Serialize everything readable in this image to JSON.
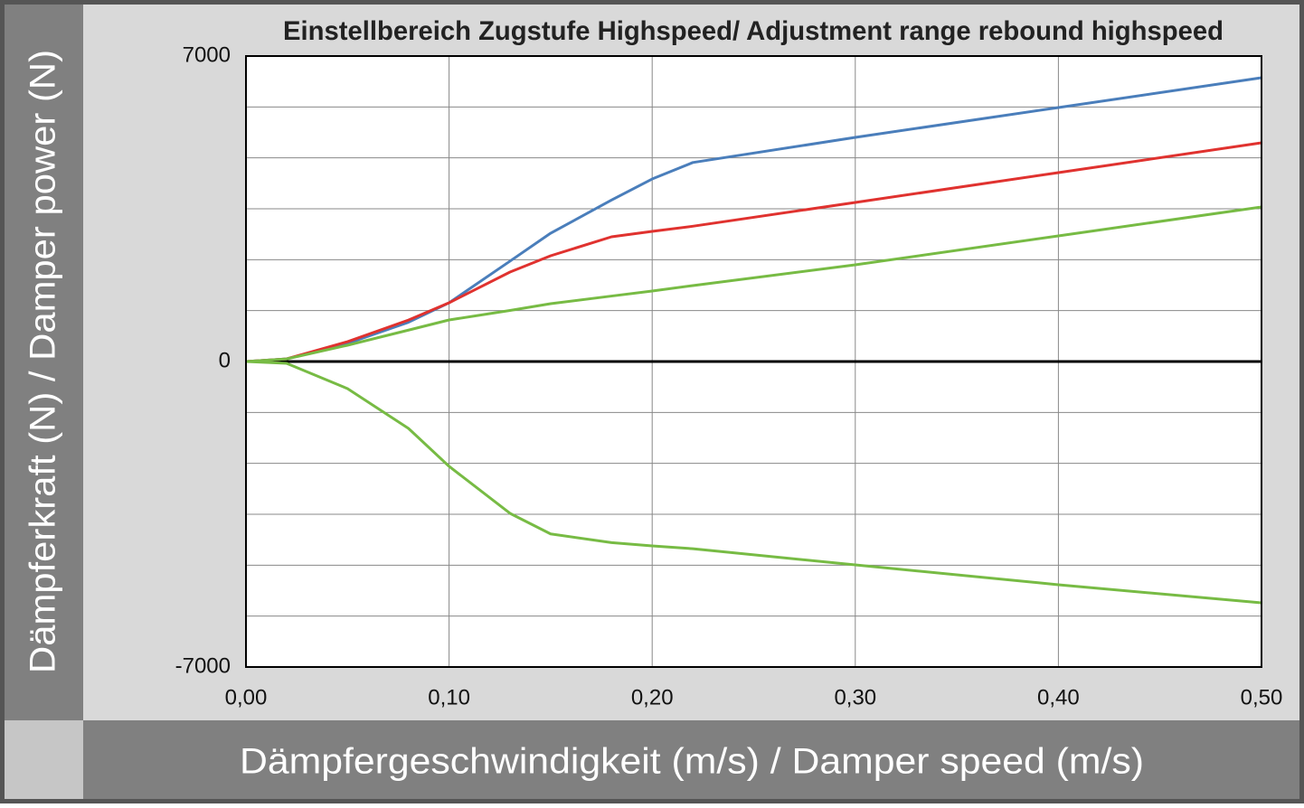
{
  "chart_data": {
    "type": "line",
    "title": "Einstellbereich Zugstufe Highspeed/ Adjustment range rebound highspeed",
    "x_label": "Dämpfergeschwindigkeit (m/s) / Damper speed (m/s)",
    "y_label": "Dämpferkraft (N) / Damper power (N)",
    "x": [
      0,
      0.02,
      0.05,
      0.08,
      0.1,
      0.13,
      0.15,
      0.18,
      0.2,
      0.22,
      0.3,
      0.4,
      0.5
    ],
    "series": [
      {
        "color": "#4a7ebb",
        "values": [
          0,
          60,
          414,
          900,
          1346,
          2300,
          2940,
          3700,
          4183,
          4560,
          5136,
          5820,
          6503
        ]
      },
      {
        "color": "#e0322f",
        "values": [
          0,
          60,
          455,
          950,
          1346,
          2050,
          2423,
          2858,
          2982,
          3100,
          3645,
          4328,
          5012
        ]
      },
      {
        "color": "#77bb44",
        "values": [
          0,
          60,
          373,
          720,
          953,
          1170,
          1325,
          1500,
          1615,
          1740,
          2216,
          2879,
          3541
        ]
      },
      {
        "color": "#77bb44",
        "values": [
          0,
          -41,
          -621,
          -1532,
          -2402,
          -3479,
          -3950,
          -4150,
          -4225,
          -4290,
          -4660,
          -5115,
          -5530
        ]
      }
    ],
    "xlim": [
      0,
      0.5
    ],
    "xticks": [
      {
        "value": 0,
        "label": "0,00"
      },
      {
        "value": 0.1,
        "label": "0,10"
      },
      {
        "value": 0.2,
        "label": "0,20"
      },
      {
        "value": 0.3,
        "label": "0,30"
      },
      {
        "value": 0.4,
        "label": "0,40"
      },
      {
        "value": 0.5,
        "label": "0,50"
      }
    ],
    "ylim": [
      -7000,
      7000
    ],
    "yticks": [
      -7000,
      0,
      7000
    ],
    "y_grid_divisions": 12,
    "grid": true
  }
}
